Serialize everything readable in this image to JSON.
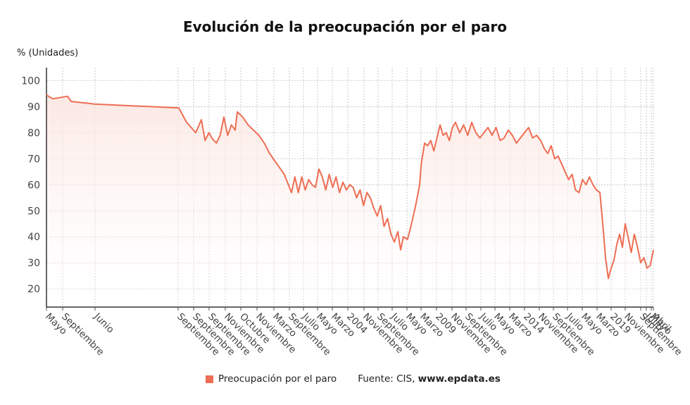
{
  "header": {
    "title": "Evolución de la preocupación por el paro",
    "ylabel": "% (Unidades)"
  },
  "legend": {
    "series_label": "Preocupación por el paro",
    "source_prefix": "Fuente: CIS,",
    "source_site": "www.epdata.es"
  },
  "colors": {
    "line": "#ee6e54",
    "fill_top": "#fbe5e0",
    "grid": "#bdbdbd"
  },
  "chart_data": {
    "type": "line",
    "title": "Evolución de la preocupación por el paro",
    "ylabel": "% (Unidades)",
    "ylim": [
      13,
      105
    ],
    "yticks": [
      20,
      30,
      40,
      50,
      60,
      70,
      80,
      90,
      100
    ],
    "grid": true,
    "legend_position": "bottom",
    "x_tick_labels": [
      "Mayo",
      "Septiembre",
      "Junio",
      "Septiembre",
      "Septiembre",
      "Septiembre",
      "Noviembre",
      "Octubre",
      "Noviembre",
      "Marzo",
      "Septiembre",
      "Julio",
      "Mayo",
      "Marzo",
      "2004",
      "Noviembre",
      "Septiembre",
      "Julio",
      "Mayo",
      "Marzo",
      "2009",
      "Noviembre",
      "Septiembre",
      "Julio",
      "Mayo",
      "Marzo",
      "2014",
      "Noviembre",
      "Septiembre",
      "Julio",
      "Mayo",
      "Marzo",
      "2019",
      "Noviembre",
      "Septiembre",
      "Julio",
      "Mayo",
      "Abril"
    ],
    "series": [
      {
        "name": "Preocupación por el paro",
        "values": [
          94.5,
          93,
          94,
          92,
          91,
          90.5,
          90,
          89.5,
          84,
          80,
          85,
          77,
          80,
          77.5,
          76,
          79,
          86,
          79,
          83,
          81,
          88,
          86,
          83,
          81,
          79,
          76,
          72,
          68,
          64,
          57,
          63,
          57,
          63,
          58,
          62,
          60,
          59,
          66,
          63,
          58,
          64,
          59,
          63,
          57,
          61,
          58,
          60,
          59,
          55,
          58,
          52,
          57,
          55,
          51,
          48,
          52,
          44,
          47,
          41,
          38,
          42,
          35,
          40,
          39,
          45,
          52,
          60,
          68,
          72,
          76,
          75,
          77,
          73,
          78,
          83,
          79,
          80,
          77,
          82,
          84,
          80,
          83,
          79,
          84,
          80,
          78,
          80,
          82,
          79,
          82,
          77,
          78,
          81,
          79,
          76,
          78,
          80,
          82,
          78,
          79,
          77,
          74,
          72,
          75,
          70,
          71,
          68,
          65,
          62,
          64,
          58,
          57,
          62,
          60,
          63,
          60,
          58,
          57,
          42,
          32,
          24,
          28,
          31,
          37,
          41,
          36,
          45,
          40,
          34,
          41,
          36,
          30,
          32,
          28,
          29,
          35
        ]
      }
    ]
  }
}
